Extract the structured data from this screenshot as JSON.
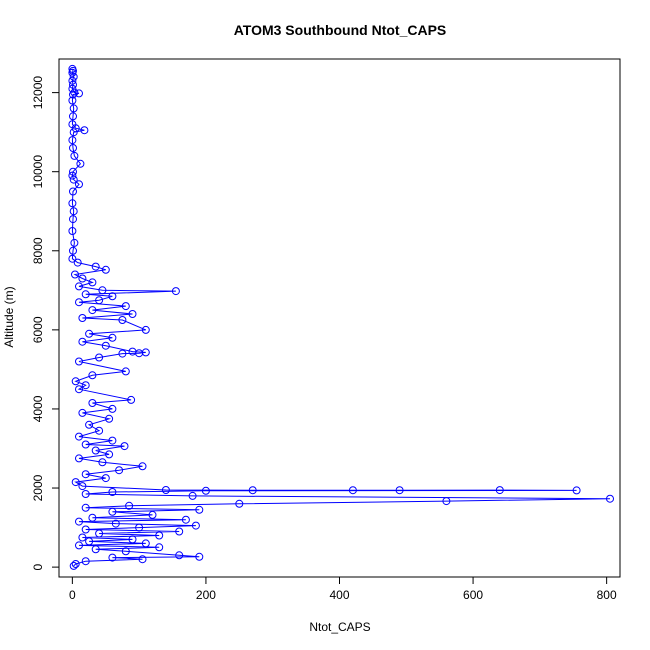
{
  "chart_data": {
    "type": "line",
    "title": "ATOM3 Southbound Ntot_CAPS",
    "xlabel": "Ntot_CAPS",
    "ylabel": "Altitude (m)",
    "xlim": [
      -20,
      820
    ],
    "ylim": [
      -250,
      12850
    ],
    "xticks": [
      "0",
      "200",
      "400",
      "600",
      "800"
    ],
    "yticks": [
      "0",
      "2000",
      "4000",
      "6000",
      "8000",
      "10000",
      "12000"
    ],
    "grid": false,
    "legend": "none",
    "marker": "open-circle",
    "series": [
      {
        "color": "#0000ff",
        "points": [
          [
            0,
            12600
          ],
          [
            1,
            12550
          ],
          [
            0,
            12500
          ],
          [
            2,
            12400
          ],
          [
            0,
            12300
          ],
          [
            1,
            12200
          ],
          [
            0,
            12100
          ],
          [
            3,
            12000
          ],
          [
            10,
            11980
          ],
          [
            1,
            11950
          ],
          [
            0,
            11800
          ],
          [
            2,
            11600
          ],
          [
            1,
            11400
          ],
          [
            0,
            11200
          ],
          [
            5,
            11100
          ],
          [
            18,
            11050
          ],
          [
            2,
            11000
          ],
          [
            0,
            10800
          ],
          [
            1,
            10600
          ],
          [
            3,
            10400
          ],
          [
            12,
            10200
          ],
          [
            1,
            10000
          ],
          [
            0,
            9900
          ],
          [
            2,
            9800
          ],
          [
            10,
            9680
          ],
          [
            1,
            9500
          ],
          [
            0,
            9200
          ],
          [
            2,
            9000
          ],
          [
            1,
            8800
          ],
          [
            0,
            8500
          ],
          [
            3,
            8200
          ],
          [
            1,
            8000
          ],
          [
            0,
            7800
          ],
          [
            8,
            7700
          ],
          [
            35,
            7600
          ],
          [
            50,
            7520
          ],
          [
            4,
            7400
          ],
          [
            15,
            7300
          ],
          [
            30,
            7200
          ],
          [
            10,
            7100
          ],
          [
            45,
            7000
          ],
          [
            155,
            6980
          ],
          [
            20,
            6900
          ],
          [
            60,
            6850
          ],
          [
            40,
            6750
          ],
          [
            10,
            6700
          ],
          [
            80,
            6600
          ],
          [
            30,
            6500
          ],
          [
            90,
            6400
          ],
          [
            15,
            6300
          ],
          [
            75,
            6250
          ],
          [
            110,
            6000
          ],
          [
            25,
            5900
          ],
          [
            60,
            5800
          ],
          [
            15,
            5700
          ],
          [
            50,
            5600
          ],
          [
            90,
            5450
          ],
          [
            110,
            5430
          ],
          [
            100,
            5410
          ],
          [
            75,
            5400
          ],
          [
            40,
            5300
          ],
          [
            10,
            5200
          ],
          [
            80,
            4950
          ],
          [
            30,
            4850
          ],
          [
            5,
            4700
          ],
          [
            20,
            4600
          ],
          [
            10,
            4500
          ],
          [
            88,
            4230
          ],
          [
            30,
            4150
          ],
          [
            60,
            4000
          ],
          [
            15,
            3900
          ],
          [
            55,
            3750
          ],
          [
            25,
            3600
          ],
          [
            40,
            3450
          ],
          [
            10,
            3300
          ],
          [
            60,
            3200
          ],
          [
            20,
            3100
          ],
          [
            78,
            3060
          ],
          [
            35,
            2950
          ],
          [
            55,
            2850
          ],
          [
            10,
            2750
          ],
          [
            45,
            2650
          ],
          [
            105,
            2550
          ],
          [
            70,
            2450
          ],
          [
            20,
            2350
          ],
          [
            50,
            2250
          ],
          [
            5,
            2150
          ],
          [
            15,
            2050
          ],
          [
            140,
            1950
          ],
          [
            270,
            1945
          ],
          [
            420,
            1945
          ],
          [
            490,
            1945
          ],
          [
            640,
            1948
          ],
          [
            755,
            1940
          ],
          [
            200,
            1930
          ],
          [
            60,
            1900
          ],
          [
            20,
            1850
          ],
          [
            180,
            1800
          ],
          [
            805,
            1730
          ],
          [
            560,
            1670
          ],
          [
            250,
            1600
          ],
          [
            85,
            1550
          ],
          [
            20,
            1500
          ],
          [
            190,
            1450
          ],
          [
            60,
            1400
          ],
          [
            120,
            1320
          ],
          [
            30,
            1250
          ],
          [
            170,
            1200
          ],
          [
            10,
            1150
          ],
          [
            65,
            1100
          ],
          [
            185,
            1050
          ],
          [
            100,
            1000
          ],
          [
            20,
            950
          ],
          [
            160,
            900
          ],
          [
            40,
            850
          ],
          [
            130,
            800
          ],
          [
            15,
            750
          ],
          [
            90,
            700
          ],
          [
            25,
            650
          ],
          [
            110,
            600
          ],
          [
            10,
            550
          ],
          [
            130,
            500
          ],
          [
            35,
            450
          ],
          [
            80,
            400
          ],
          [
            160,
            300
          ],
          [
            190,
            260
          ],
          [
            60,
            240
          ],
          [
            105,
            200
          ],
          [
            20,
            150
          ],
          [
            5,
            80
          ],
          [
            2,
            30
          ]
        ]
      }
    ]
  }
}
